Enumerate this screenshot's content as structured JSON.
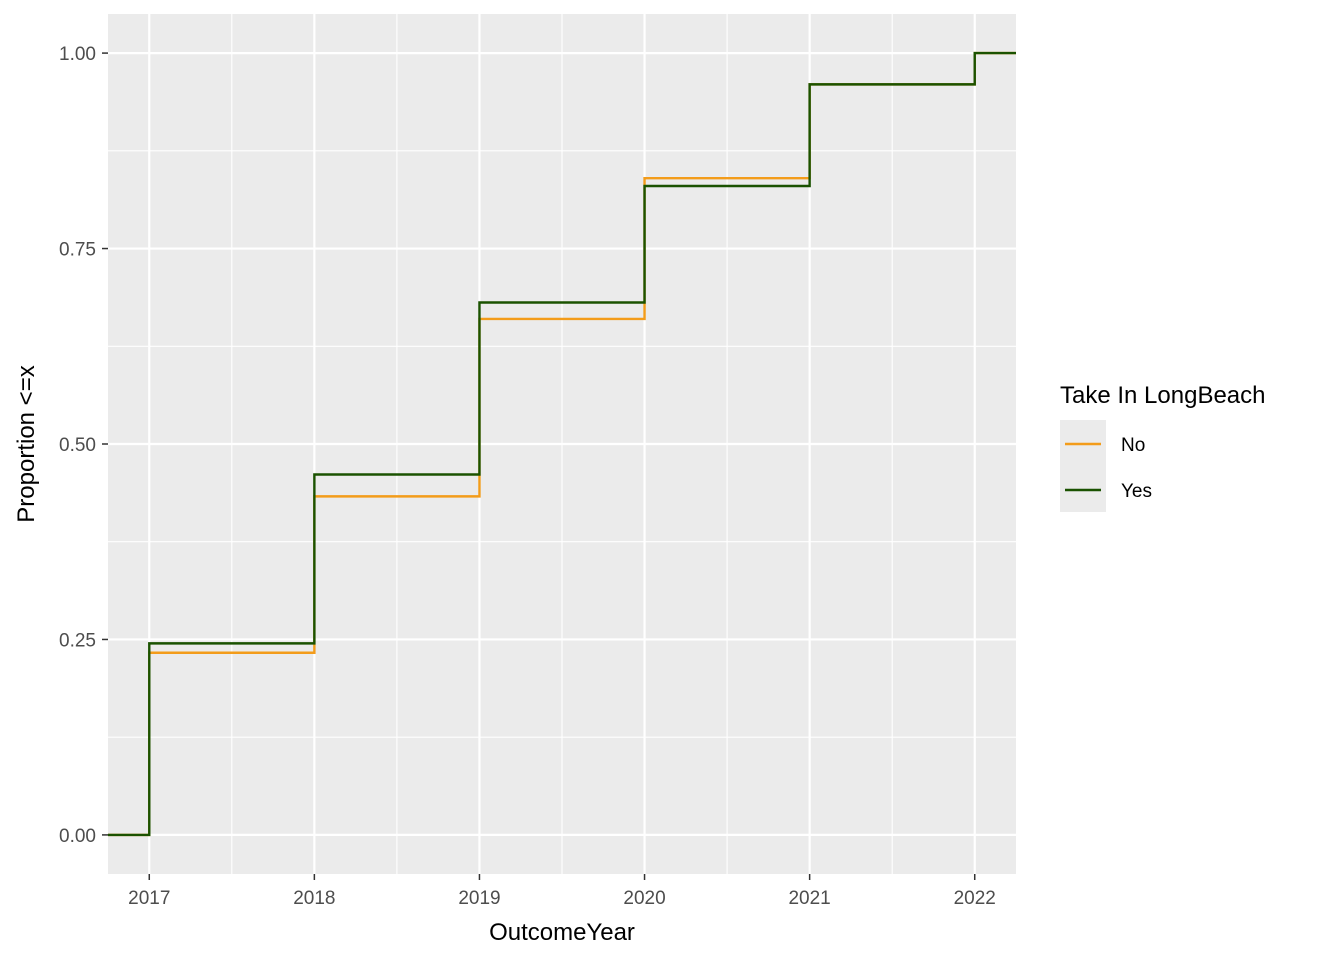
{
  "chart_data": {
    "type": "line",
    "step": "hv",
    "xlabel": "OutcomeYear",
    "ylabel": "Proportion <=x",
    "xlim": [
      2016.75,
      2022.25
    ],
    "ylim": [
      -0.05,
      1.05
    ],
    "x_ticks": [
      2017,
      2018,
      2019,
      2020,
      2021,
      2022
    ],
    "y_ticks": [
      0,
      0.25,
      0.5,
      0.75,
      1
    ],
    "y_tick_labels": [
      "0.00",
      "0.25",
      "0.50",
      "0.75",
      "1.00"
    ],
    "legend": {
      "title": "Take In LongBeach",
      "position": "right"
    },
    "grid": true,
    "series": [
      {
        "name": "No",
        "color": "#F39C1A",
        "x": [
          2016.75,
          2017,
          2018,
          2019,
          2020,
          2021,
          2022,
          2022.25
        ],
        "y": [
          0,
          0.233,
          0.433,
          0.66,
          0.84,
          0.96,
          1.0,
          1.0
        ]
      },
      {
        "name": "Yes",
        "color": "#1A5200",
        "x": [
          2016.75,
          2017,
          2018,
          2019,
          2020,
          2021,
          2022,
          2022.25
        ],
        "y": [
          0,
          0.245,
          0.461,
          0.681,
          0.83,
          0.96,
          1.0,
          1.0
        ]
      }
    ]
  }
}
